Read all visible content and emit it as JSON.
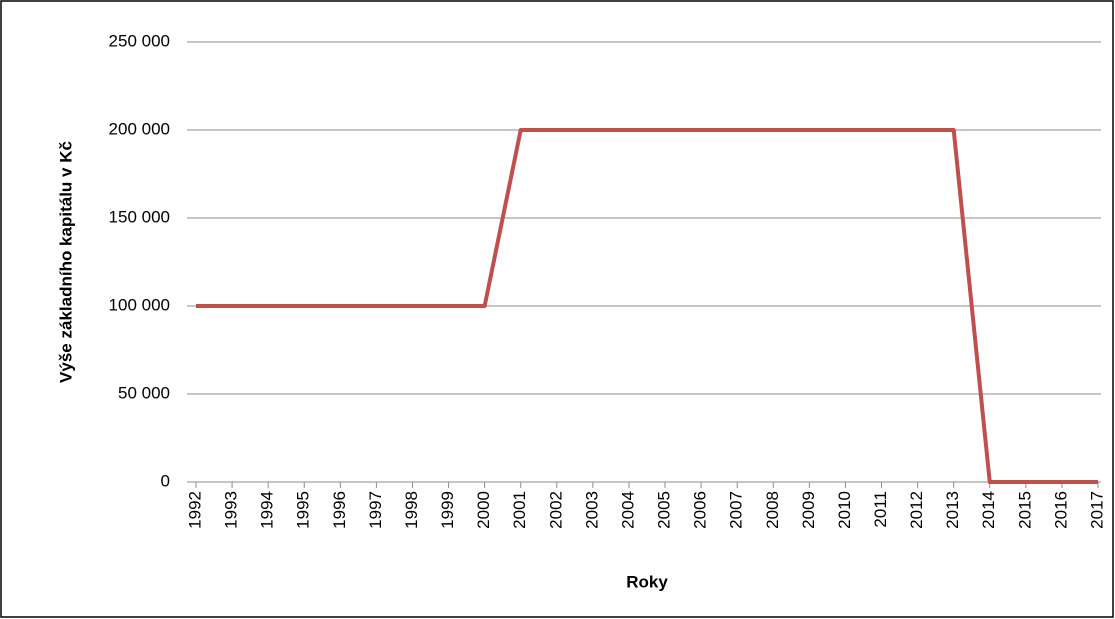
{
  "chart_data": {
    "type": "line",
    "categories": [
      "1992",
      "1993",
      "1994",
      "1995",
      "1996",
      "1997",
      "1998",
      "1999",
      "2000",
      "2001",
      "2002",
      "2003",
      "2004",
      "2005",
      "2006",
      "2007",
      "2008",
      "2009",
      "2010",
      "2011",
      "2012",
      "2013",
      "2014",
      "2015",
      "2016",
      "2017"
    ],
    "series": [
      {
        "name": "Výše základního kapitálu",
        "color": "#c0504d",
        "values": [
          100000,
          100000,
          100000,
          100000,
          100000,
          100000,
          100000,
          100000,
          100000,
          200000,
          200000,
          200000,
          200000,
          200000,
          200000,
          200000,
          200000,
          200000,
          200000,
          200000,
          200000,
          200000,
          0,
          0,
          0,
          0
        ]
      }
    ],
    "ylim": [
      0,
      250000
    ],
    "yticks": [
      0,
      {
        "value": 50000,
        "label": "50 000"
      },
      {
        "value": 100000,
        "label": "100 000"
      },
      {
        "value": 150000,
        "label": "150 000"
      },
      {
        "value": 200000,
        "label": "200 000"
      },
      {
        "value": 250000,
        "label": "250 000"
      }
    ],
    "y_label": "Výše základního kapitálu v Kč",
    "x_label": "Roky",
    "grid": true
  }
}
